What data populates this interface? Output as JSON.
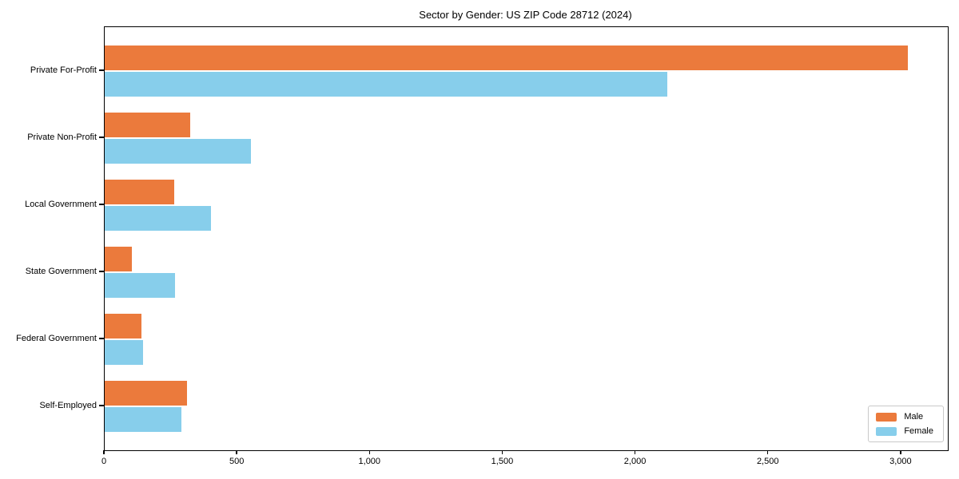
{
  "chart_data": {
    "type": "bar",
    "orientation": "horizontal",
    "title": "Sector by Gender: US ZIP Code 28712 (2024)",
    "categories": [
      "Private For-Profit",
      "Private Non-Profit",
      "Local Government",
      "State Government",
      "Federal Government",
      "Self-Employed"
    ],
    "series": [
      {
        "name": "Male",
        "color": "#eb7a3c",
        "values": [
          3025,
          323,
          261,
          103,
          137,
          311
        ]
      },
      {
        "name": "Female",
        "color": "#87ceeb",
        "values": [
          2120,
          550,
          401,
          264,
          145,
          288
        ]
      }
    ],
    "xlabel": "",
    "ylabel": "",
    "xlim": [
      0,
      3175
    ],
    "xticks": [
      0,
      500,
      1000,
      1500,
      2000,
      2500,
      3000
    ],
    "xtick_labels": [
      "0",
      "500",
      "1,000",
      "1,500",
      "2,000",
      "2,500",
      "3,000"
    ],
    "grid": false,
    "legend": {
      "position": "lower-right"
    },
    "colors": {
      "background": "#ffffff",
      "axis": "#000000",
      "legend_border": "#c9c9c9"
    }
  }
}
